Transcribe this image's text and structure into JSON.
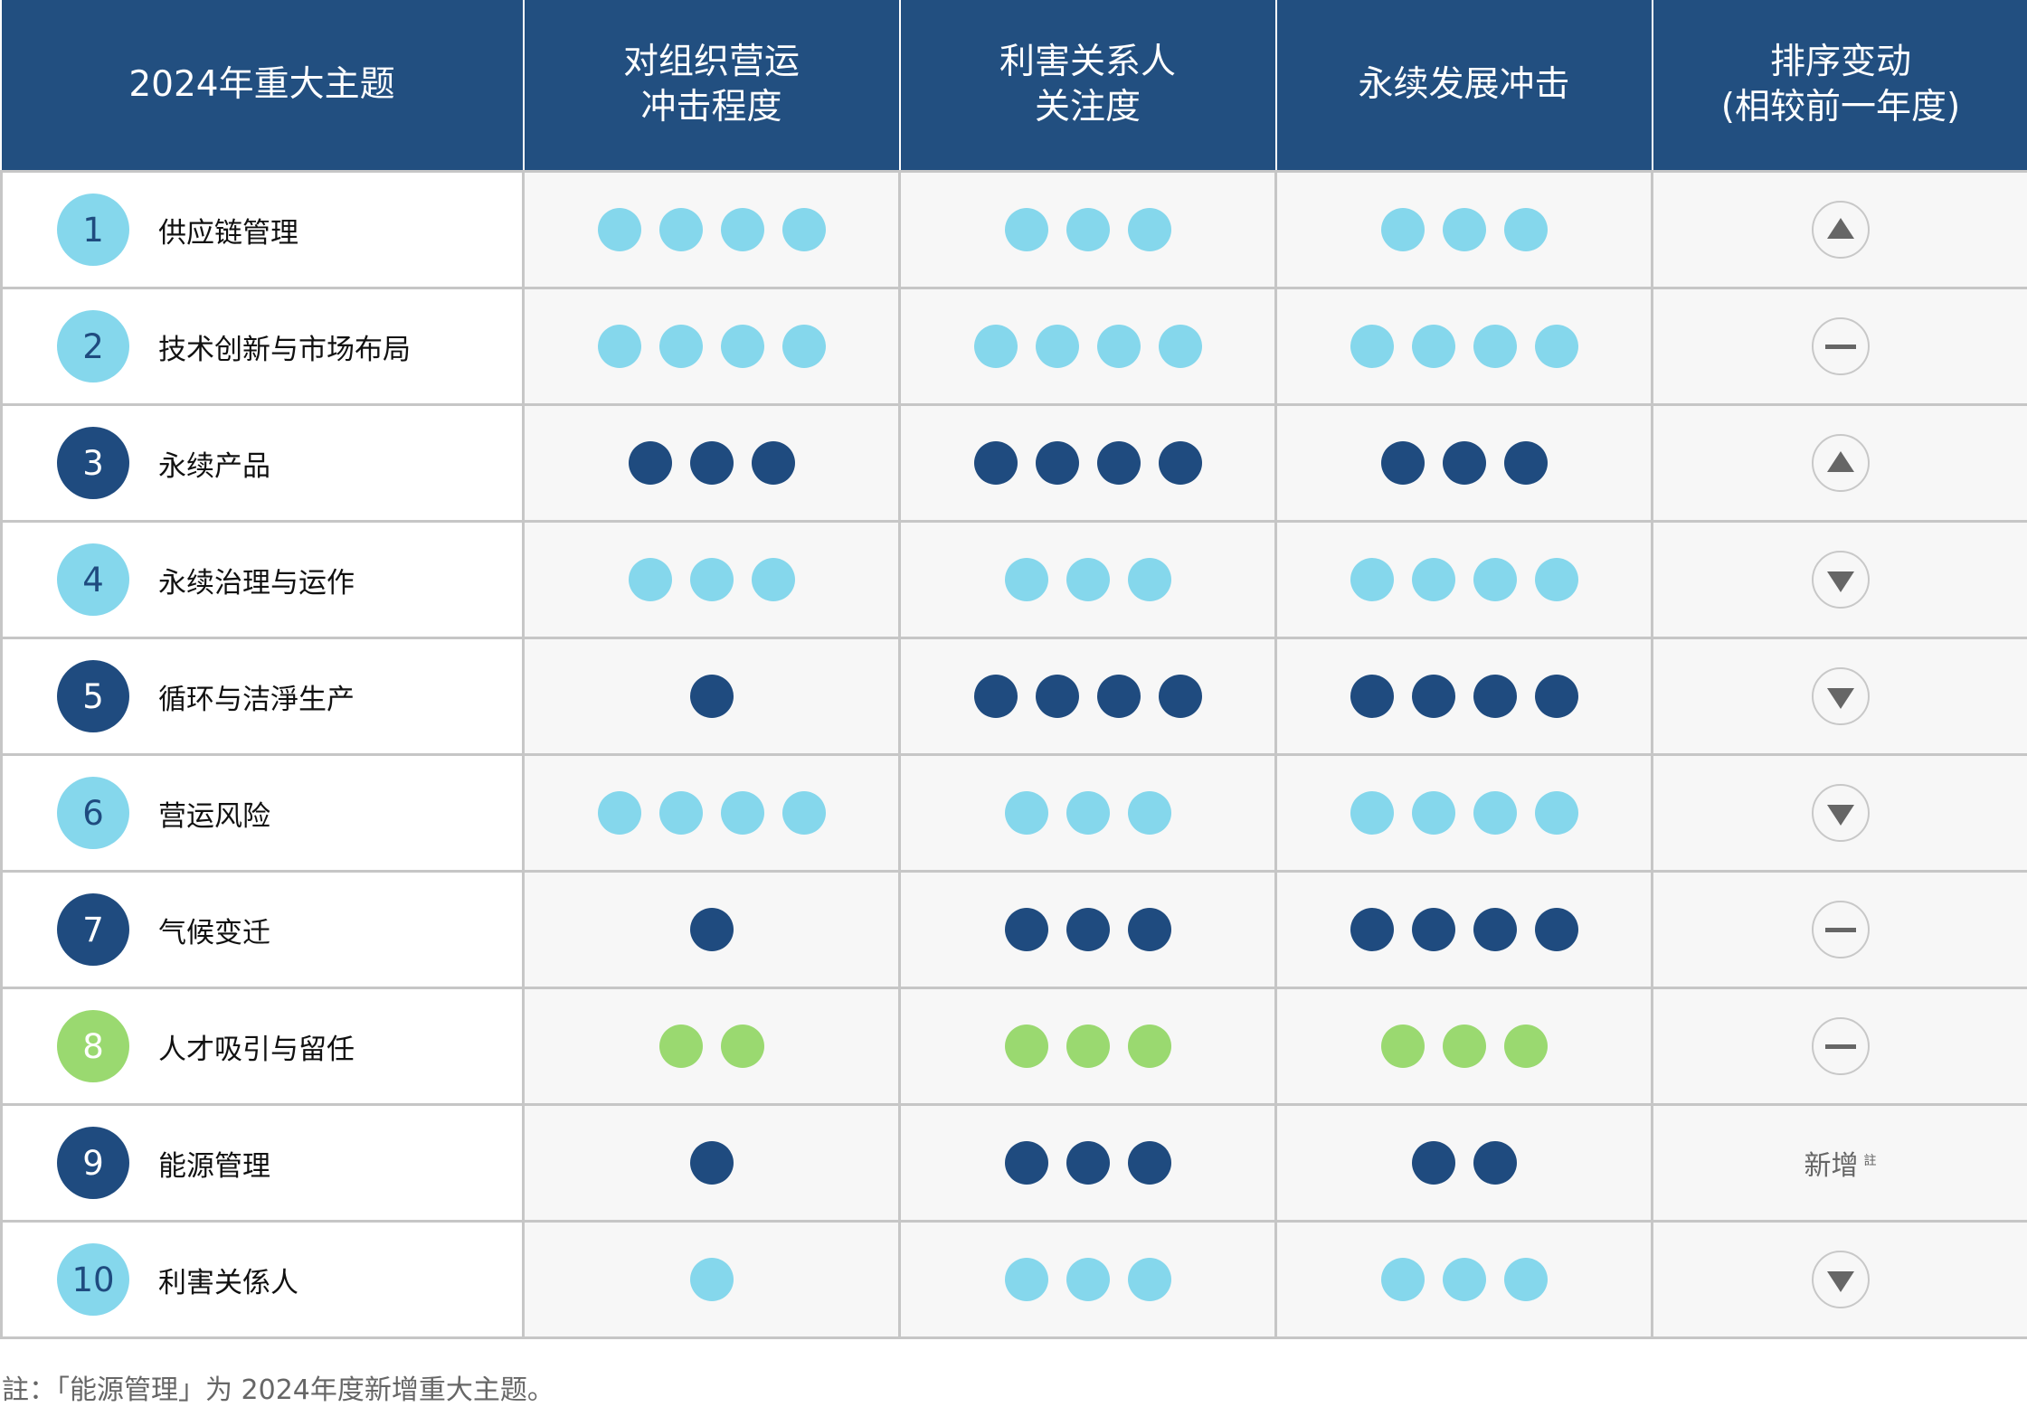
{
  "colors": {
    "header": "#224f80",
    "light": "#85d7ec",
    "dark": "#1f4b7f",
    "green": "#9ad970",
    "badge_text_light": "#1f4b7f",
    "badge_text_dark": "#ffffff"
  },
  "headers": [
    "2024年重大主题",
    "对组织营运\n冲击程度",
    "利害关系人\n关注度",
    "永续发展冲击",
    "排序变动\n(相较前一年度)"
  ],
  "rows": [
    {
      "num": "1",
      "name": "供应链管理",
      "color": "light",
      "impact": 4,
      "attention": 3,
      "sustain": 3,
      "change": "up"
    },
    {
      "num": "2",
      "name": "技术创新与市场布局",
      "color": "light",
      "impact": 4,
      "attention": 4,
      "sustain": 4,
      "change": "same"
    },
    {
      "num": "3",
      "name": "永续产品",
      "color": "dark",
      "impact": 3,
      "attention": 4,
      "sustain": 3,
      "change": "up"
    },
    {
      "num": "4",
      "name": "永续治理与运作",
      "color": "light",
      "impact": 3,
      "attention": 3,
      "sustain": 4,
      "change": "down"
    },
    {
      "num": "5",
      "name": "循环与洁淨生产",
      "color": "dark",
      "impact": 1,
      "attention": 4,
      "sustain": 4,
      "change": "down"
    },
    {
      "num": "6",
      "name": "营运风险",
      "color": "light",
      "impact": 4,
      "attention": 3,
      "sustain": 4,
      "change": "down"
    },
    {
      "num": "7",
      "name": "气候变迁",
      "color": "dark",
      "impact": 1,
      "attention": 3,
      "sustain": 4,
      "change": "same"
    },
    {
      "num": "8",
      "name": "人才吸引与留任",
      "color": "green",
      "impact": 2,
      "attention": 3,
      "sustain": 3,
      "change": "same"
    },
    {
      "num": "9",
      "name": "能源管理",
      "color": "dark",
      "impact": 1,
      "attention": 3,
      "sustain": 2,
      "change": "new"
    },
    {
      "num": "10",
      "name": "利害关係人",
      "color": "light",
      "impact": 1,
      "attention": 3,
      "sustain": 3,
      "change": "down"
    }
  ],
  "new_label": "新增",
  "new_note_mark": "註",
  "footnote": "註：「能源管理」为 2024年度新增重大主题。"
}
